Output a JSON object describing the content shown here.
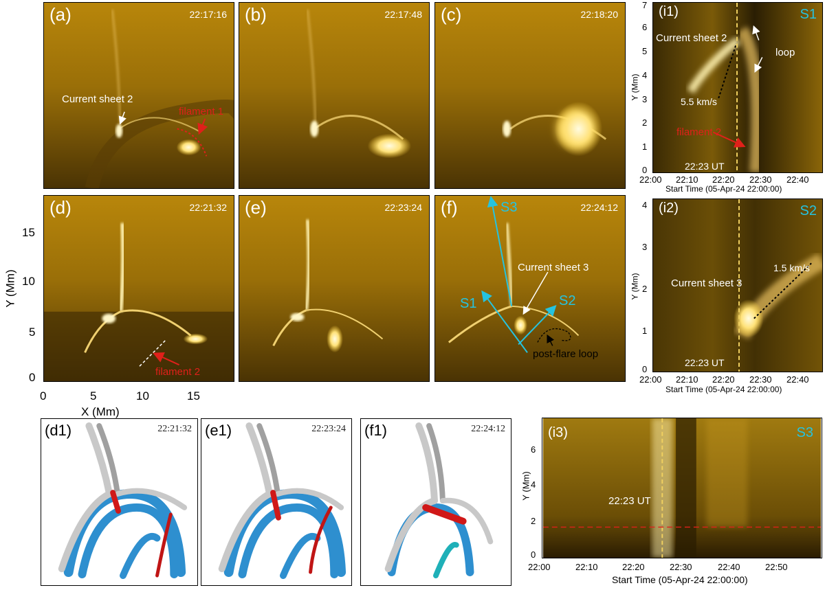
{
  "panels": {
    "a": {
      "label": "(a)",
      "time": "22:17:16"
    },
    "b": {
      "label": "(b)",
      "time": "22:17:48"
    },
    "c": {
      "label": "(c)",
      "time": "22:18:20"
    },
    "d": {
      "label": "(d)",
      "time": "22:21:32"
    },
    "e": {
      "label": "(e)",
      "time": "22:23:24"
    },
    "f": {
      "label": "(f)",
      "time": "22:24:12"
    }
  },
  "annotations": {
    "current_sheet_2": "Current sheet 2",
    "filament_1": "filament 1",
    "filament_2": "filament 2",
    "current_sheet_3": "Current sheet 3",
    "post_flare_loop": "post-flare loop",
    "s1": "S1",
    "s2": "S2",
    "s3": "S3",
    "loop": "loop",
    "speed_i1": "5.5 km/s",
    "speed_i2": "1.5 km/s",
    "ut_marker": "22:23 UT"
  },
  "image_axes": {
    "xlabel": "X (Mm)",
    "ylabel": "Y (Mm)",
    "xticks": [
      "0",
      "5",
      "10",
      "15"
    ],
    "yticks": [
      "0",
      "5",
      "10",
      "15"
    ]
  },
  "timeslices": {
    "i1": {
      "label": "(i1)",
      "slit": "S1",
      "yticks": [
        "0",
        "1",
        "2",
        "3",
        "4",
        "5",
        "6",
        "7"
      ],
      "xticks": [
        "22:00",
        "22:10",
        "22:20",
        "22:30",
        "22:40"
      ],
      "ylabel": "Y (Mm)",
      "xlabel": "Start Time (05-Apr-24 22:00:00)"
    },
    "i2": {
      "label": "(i2)",
      "slit": "S2",
      "yticks": [
        "0",
        "1",
        "2",
        "3",
        "4"
      ],
      "xticks": [
        "22:00",
        "22:10",
        "22:20",
        "22:30",
        "22:40"
      ],
      "ylabel": "Y (Mm)",
      "xlabel": "Start Time (05-Apr-24 22:00:00)"
    },
    "i3": {
      "label": "(i3)",
      "slit": "S3",
      "yticks": [
        "0",
        "2",
        "4",
        "6"
      ],
      "xticks": [
        "22:00",
        "22:10",
        "22:20",
        "22:30",
        "22:40",
        "22:50"
      ],
      "ylabel": "Y (Mm)",
      "xlabel": "Start Time (05-Apr-24 22:00:00)"
    }
  },
  "cartoons": {
    "d1": {
      "label": "(d1)",
      "time": "22:21:32"
    },
    "e1": {
      "label": "(e1)",
      "time": "22:23:24"
    },
    "f1": {
      "label": "(f1)",
      "time": "22:24:12"
    }
  },
  "colors": {
    "euv_base": "#6b4a05",
    "euv_bright": "#fff2b0",
    "slit_cyan": "#25c3e0",
    "marker_yellow": "#f0d060",
    "annotation_red": "#e0201a",
    "loop_blue": "#2e8fcf",
    "loop_gray": "#c8c8c8"
  }
}
